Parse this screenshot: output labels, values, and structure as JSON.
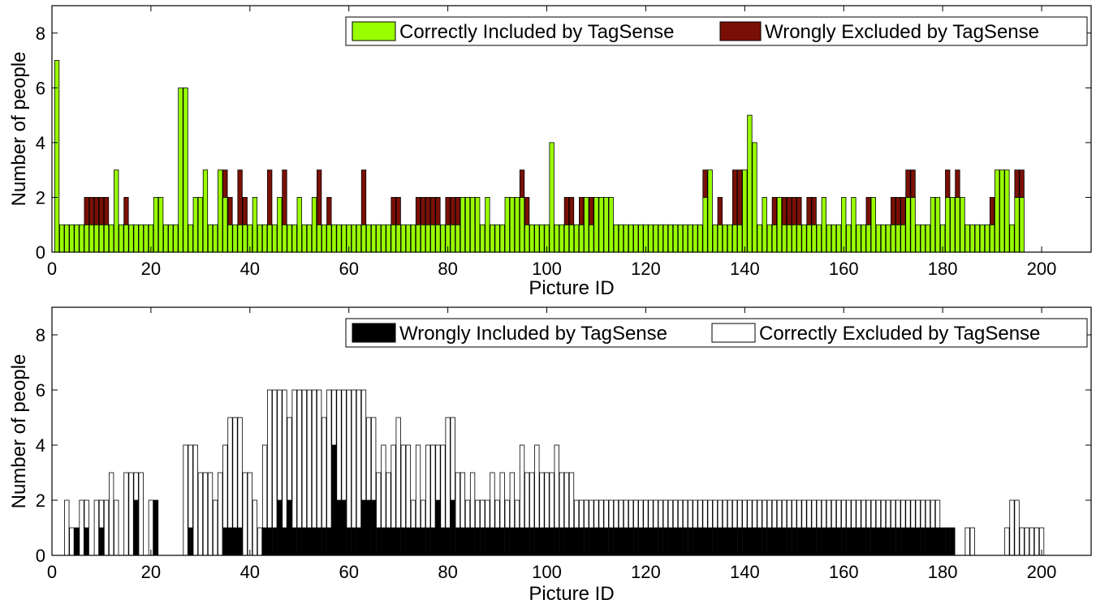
{
  "chart_data": [
    {
      "type": "bar",
      "stacked": true,
      "xlabel": "Picture ID",
      "ylabel": "Number of people",
      "xlim": [
        0,
        210
      ],
      "ylim": [
        0,
        9
      ],
      "xticks": [
        "0",
        "20",
        "40",
        "60",
        "80",
        "100",
        "120",
        "140",
        "160",
        "180",
        "200"
      ],
      "yticks": [
        "0",
        "2",
        "4",
        "6",
        "8"
      ],
      "grid": false,
      "legend_position": "top-right",
      "x_start": 1,
      "series": [
        {
          "name": "Correctly Included by TagSense",
          "color": "#99ff00",
          "values": [
            7,
            1,
            1,
            1,
            1,
            1,
            1,
            1,
            1,
            1,
            1,
            1,
            3,
            1,
            1,
            1,
            1,
            1,
            1,
            1,
            2,
            2,
            1,
            1,
            1,
            6,
            6,
            1,
            2,
            2,
            3,
            1,
            1,
            3,
            2,
            1,
            1,
            1,
            1,
            1,
            2,
            1,
            1,
            1,
            1,
            2,
            1,
            1,
            1,
            2,
            1,
            1,
            2,
            1,
            1,
            1,
            1,
            1,
            1,
            1,
            1,
            1,
            1,
            1,
            1,
            1,
            1,
            1,
            1,
            1,
            1,
            1,
            1,
            1,
            1,
            1,
            1,
            1,
            1,
            1,
            1,
            1,
            2,
            2,
            2,
            2,
            1,
            2,
            1,
            1,
            1,
            2,
            2,
            2,
            2,
            1,
            1,
            1,
            1,
            1,
            4,
            1,
            1,
            1,
            1,
            1,
            1,
            2,
            1,
            2,
            2,
            2,
            2,
            1,
            1,
            1,
            1,
            1,
            1,
            1,
            1,
            1,
            1,
            1,
            1,
            1,
            1,
            1,
            1,
            1,
            1,
            2,
            3,
            1,
            1,
            1,
            1,
            1,
            1,
            3,
            5,
            4,
            1,
            2,
            1,
            1,
            2,
            1,
            1,
            1,
            1,
            1,
            1,
            1,
            1,
            2,
            1,
            1,
            1,
            2,
            1,
            2,
            1,
            1,
            1,
            2,
            1,
            1,
            1,
            1,
            1,
            1,
            2,
            2,
            1,
            1,
            1,
            2,
            2,
            1,
            2,
            2,
            2,
            2,
            1,
            1,
            1,
            1,
            1,
            1,
            3,
            3,
            3,
            1,
            2,
            2
          ],
          "y_max_shown": 7
        },
        {
          "name": "Wrongly Excluded by TagSense",
          "color": "#7a1005",
          "values": [
            0,
            0,
            0,
            0,
            0,
            0,
            1,
            1,
            1,
            1,
            1,
            0,
            0,
            0,
            1,
            0,
            0,
            0,
            0,
            0,
            0,
            0,
            0,
            0,
            0,
            0,
            0,
            0,
            0,
            0,
            0,
            0,
            0,
            0,
            1,
            1,
            0,
            2,
            1,
            0,
            0,
            0,
            0,
            2,
            0,
            0,
            2,
            0,
            0,
            0,
            0,
            0,
            0,
            2,
            0,
            1,
            0,
            0,
            0,
            0,
            0,
            0,
            2,
            0,
            0,
            0,
            0,
            0,
            1,
            1,
            0,
            0,
            0,
            1,
            1,
            1,
            1,
            1,
            0,
            1,
            1,
            1,
            0,
            0,
            0,
            0,
            0,
            0,
            0,
            0,
            0,
            0,
            0,
            0,
            1,
            1,
            0,
            0,
            0,
            0,
            0,
            0,
            0,
            1,
            1,
            0,
            1,
            0,
            1,
            0,
            0,
            0,
            0,
            0,
            0,
            0,
            0,
            0,
            0,
            0,
            0,
            0,
            0,
            0,
            0,
            0,
            0,
            0,
            0,
            0,
            0,
            1,
            0,
            0,
            1,
            0,
            0,
            2,
            2,
            0,
            0,
            0,
            0,
            0,
            0,
            1,
            0,
            1,
            1,
            1,
            1,
            0,
            1,
            1,
            0,
            0,
            0,
            0,
            0,
            0,
            0,
            0,
            0,
            0,
            1,
            0,
            0,
            0,
            0,
            1,
            1,
            1,
            1,
            1,
            0,
            0,
            0,
            0,
            0,
            0,
            1,
            0,
            1,
            0,
            0,
            0,
            0,
            0,
            0,
            1,
            0,
            0,
            0,
            0,
            1,
            1
          ]
        }
      ],
      "legend": [
        {
          "label": "Correctly Included by TagSense",
          "color": "#99ff00"
        },
        {
          "label": "Wrongly Excluded by TagSense",
          "color": "#7a1005"
        }
      ]
    },
    {
      "type": "bar",
      "stacked": true,
      "xlabel": "Picture ID",
      "ylabel": "Number of people",
      "xlim": [
        0,
        210
      ],
      "ylim": [
        0,
        9
      ],
      "xticks": [
        "0",
        "20",
        "40",
        "60",
        "80",
        "100",
        "120",
        "140",
        "160",
        "180",
        "200"
      ],
      "yticks": [
        "0",
        "2",
        "4",
        "6",
        "8"
      ],
      "grid": false,
      "legend_position": "top-right",
      "x_start": 1,
      "series": [
        {
          "name": "Wrongly Included by TagSense",
          "color": "#000000",
          "values": [
            0,
            0,
            0,
            0,
            1,
            0,
            1,
            0,
            0,
            1,
            0,
            0,
            0,
            0,
            0,
            0,
            2,
            0,
            0,
            0,
            2,
            0,
            0,
            0,
            0,
            0,
            0,
            1,
            0,
            0,
            0,
            0,
            0,
            0,
            1,
            1,
            1,
            1,
            0,
            0,
            0,
            0,
            1,
            1,
            1,
            2,
            1,
            2,
            1,
            1,
            1,
            1,
            1,
            1,
            1,
            1,
            4,
            2,
            2,
            1,
            1,
            1,
            2,
            2,
            2,
            1,
            1,
            1,
            1,
            1,
            1,
            1,
            1,
            1,
            1,
            1,
            1,
            2,
            1,
            1,
            2,
            1,
            1,
            1,
            1,
            1,
            1,
            1,
            1,
            1,
            1,
            1,
            1,
            1,
            1,
            1,
            1,
            1,
            1,
            1,
            1,
            1,
            1,
            1,
            1,
            1,
            1,
            1,
            1,
            1,
            1,
            1,
            1,
            1,
            1,
            1,
            1,
            1,
            1,
            1,
            1,
            1,
            1,
            1,
            1,
            1,
            1,
            1,
            1,
            1,
            1,
            1,
            1,
            1,
            1,
            1,
            1,
            1,
            1,
            1,
            1,
            1,
            1,
            1,
            1,
            1,
            1,
            1,
            1,
            1,
            1,
            1,
            1,
            1,
            1,
            1,
            1,
            1,
            1,
            1,
            1,
            1,
            1,
            1,
            1,
            1,
            1,
            1,
            1,
            1,
            1,
            1,
            1,
            1,
            1,
            1,
            1,
            1,
            1,
            1,
            1,
            1,
            0,
            0,
            0,
            0,
            0,
            0,
            0,
            0,
            0,
            0,
            0,
            0,
            0,
            0,
            0,
            0,
            0,
            0,
            0
          ],
          "note_free": true
        },
        {
          "name": "Correctly Excluded by TagSense",
          "color": "#ffffff",
          "values": [
            0,
            0,
            2,
            1,
            0,
            2,
            1,
            0,
            2,
            1,
            2,
            3,
            2,
            0,
            3,
            3,
            1,
            3,
            0,
            2,
            0,
            0,
            0,
            0,
            0,
            0,
            4,
            3,
            4,
            3,
            3,
            3,
            2,
            3,
            3,
            4,
            4,
            4,
            3,
            3,
            2,
            1,
            3,
            5,
            5,
            4,
            5,
            3,
            5,
            5,
            5,
            5,
            5,
            5,
            4,
            5,
            2,
            4,
            4,
            5,
            5,
            5,
            4,
            3,
            3,
            2,
            3,
            2,
            3,
            4,
            3,
            3,
            1,
            3,
            1,
            3,
            3,
            2,
            3,
            4,
            3,
            2,
            2,
            1,
            2,
            1,
            1,
            1,
            2,
            1,
            2,
            1,
            2,
            1,
            3,
            2,
            2,
            3,
            2,
            2,
            2,
            3,
            2,
            2,
            2,
            1,
            1,
            1,
            1,
            1,
            1,
            1,
            1,
            1,
            1,
            1,
            1,
            1,
            1,
            1,
            1,
            1,
            1,
            1,
            1,
            1,
            1,
            1,
            1,
            1,
            1,
            1,
            1,
            1,
            1,
            1,
            1,
            1,
            1,
            1,
            1,
            1,
            1,
            1,
            1,
            1,
            1,
            1,
            1,
            1,
            1,
            1,
            1,
            1,
            1,
            1,
            1,
            1,
            1,
            1,
            1,
            1,
            1,
            1,
            1,
            1,
            1,
            1,
            1,
            1,
            1,
            1,
            1,
            1,
            1,
            1,
            1,
            1,
            1,
            0,
            0,
            0,
            0,
            0,
            1,
            1,
            0,
            0,
            0,
            0,
            0,
            0,
            1,
            2,
            2,
            1,
            1,
            1,
            1,
            1,
            0
          ]
        }
      ],
      "legend": [
        {
          "label": "Wrongly Included by TagSense",
          "color": "#000000"
        },
        {
          "label": "Correctly Excluded by TagSense",
          "color": "#ffffff"
        }
      ]
    }
  ]
}
